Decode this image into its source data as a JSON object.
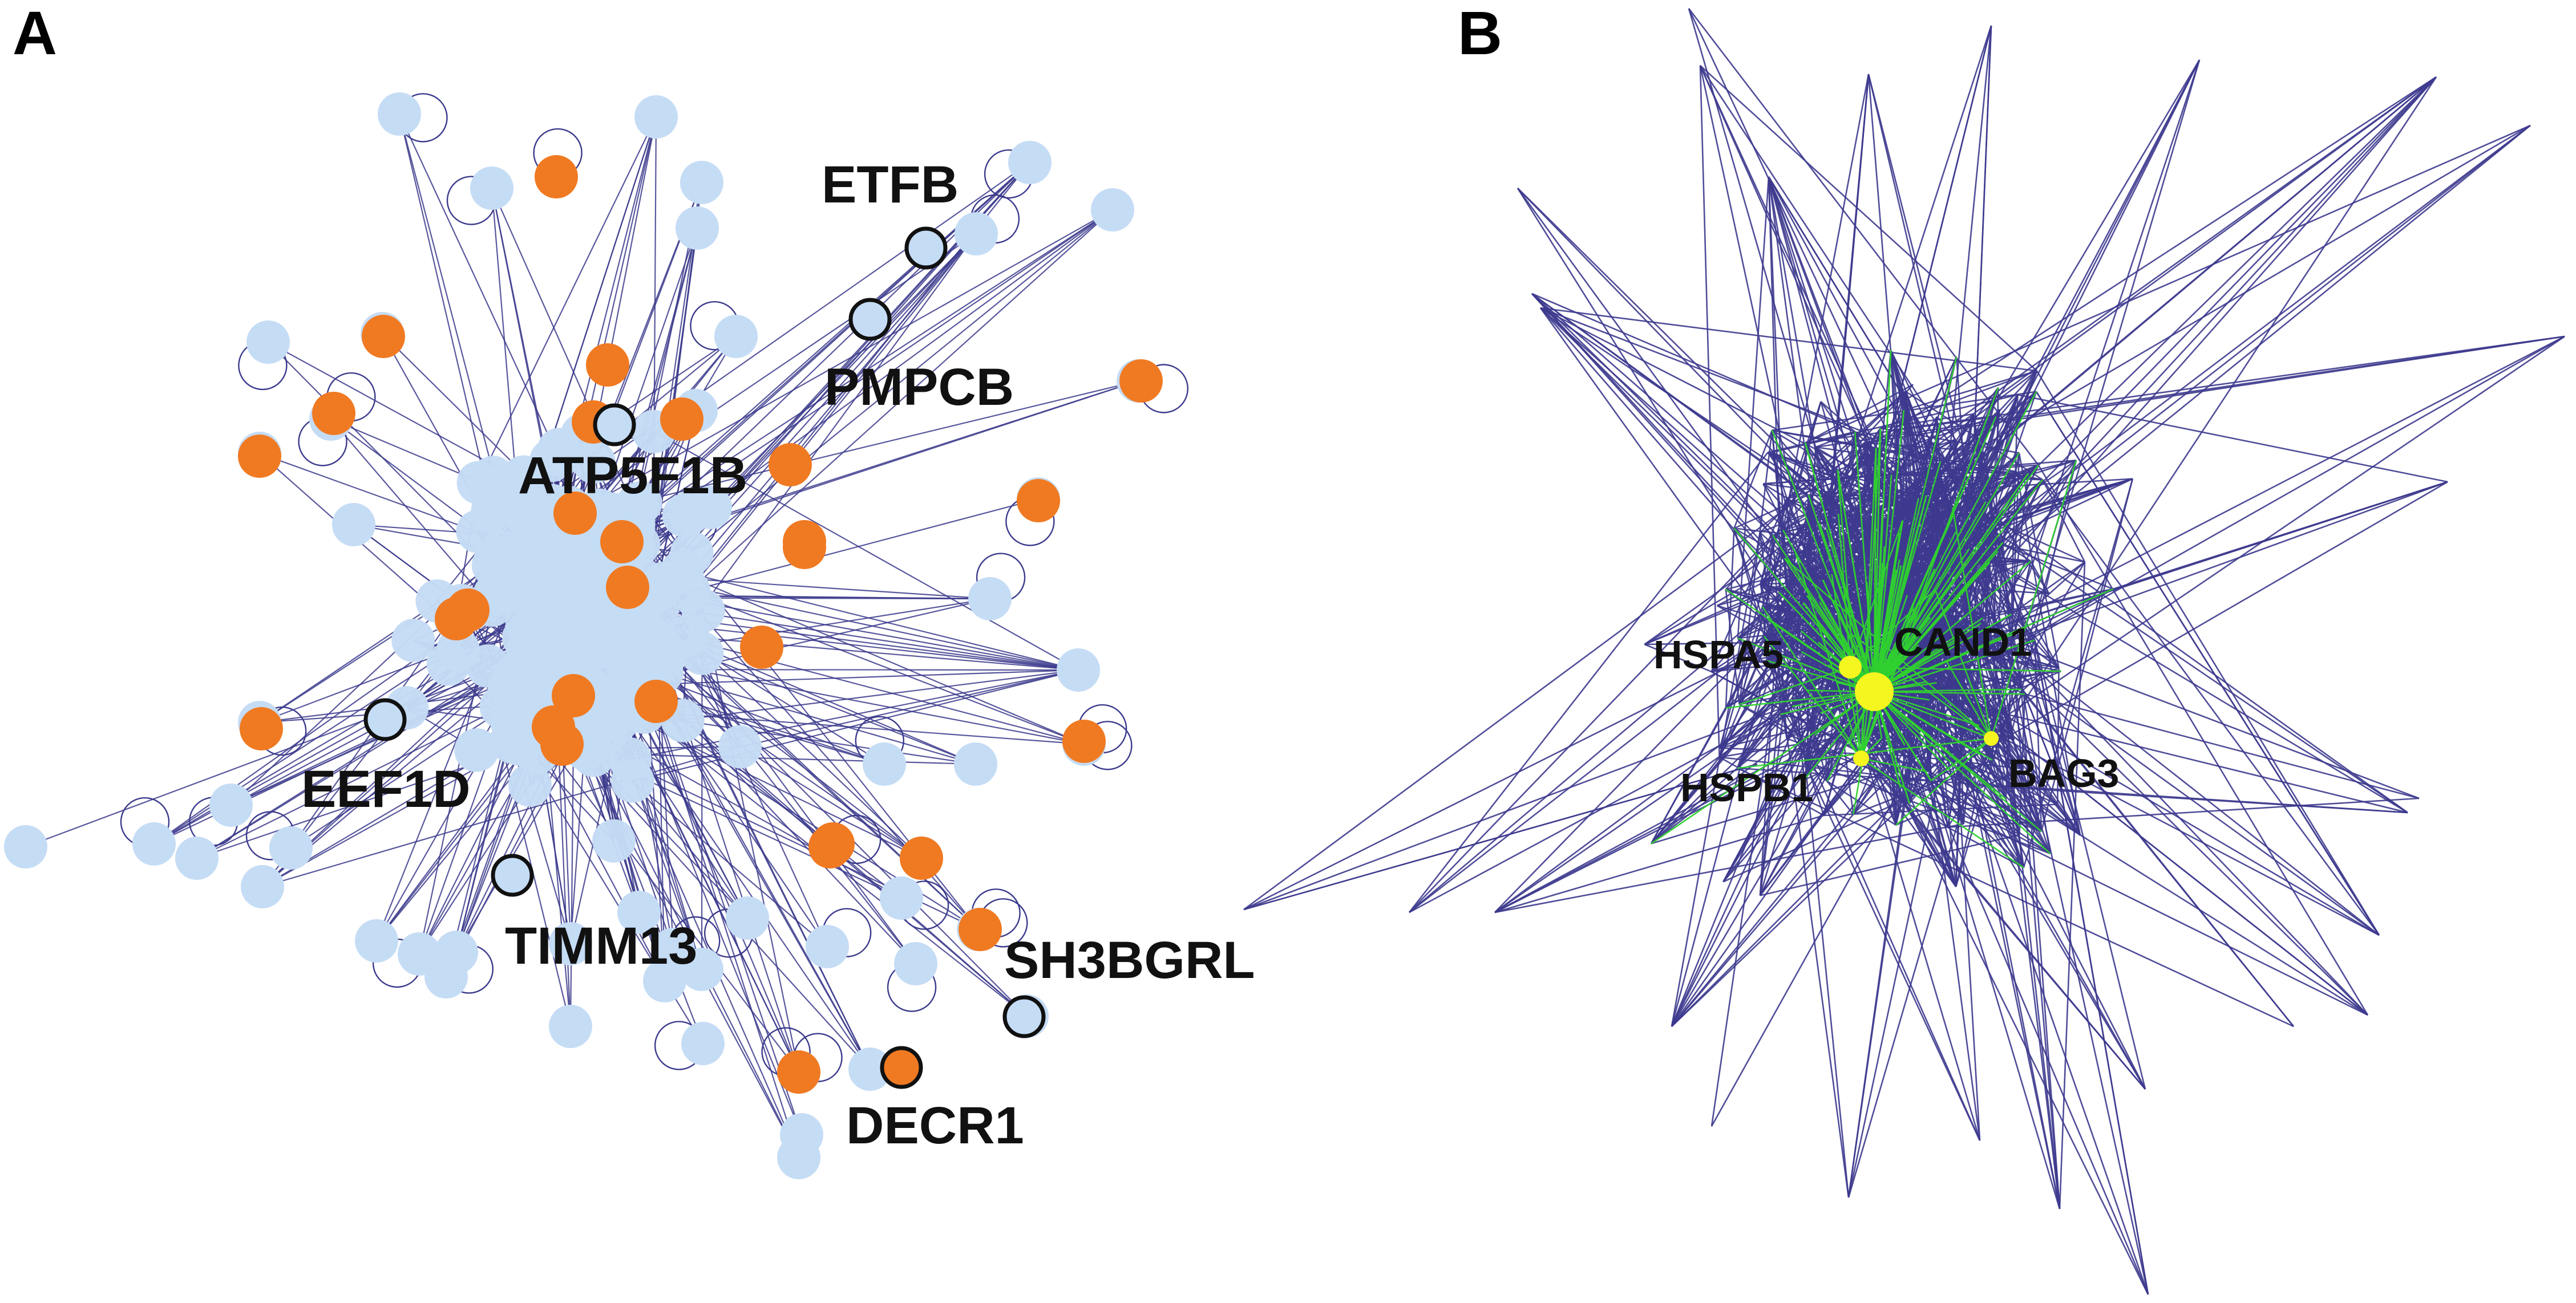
{
  "panels": {
    "a": {
      "letter": "A",
      "edge_color": "#3b3a8c",
      "node_colors": {
        "light": "#c5dcf5",
        "orange": "#f07a22"
      },
      "highlight_ring_color": "#111111",
      "labels": {
        "etfb": "ETFB",
        "pmpcb": "PMPCB",
        "atp5f1b": "ATP5F1B",
        "eef1d": "EEF1D",
        "timm13": "TIMM13",
        "sh3bgrl": "SH3BGRL",
        "decr1": "DECR1"
      }
    },
    "b": {
      "letter": "B",
      "edge_colors": {
        "main": "#3d3a8e",
        "hub": "#2fd12f"
      },
      "node_color": "#f5f51f",
      "labels": {
        "hspa5": "HSPA5",
        "cand1": "CAND1",
        "hspb1": "HSPB1",
        "bag3": "BAG3"
      }
    }
  }
}
